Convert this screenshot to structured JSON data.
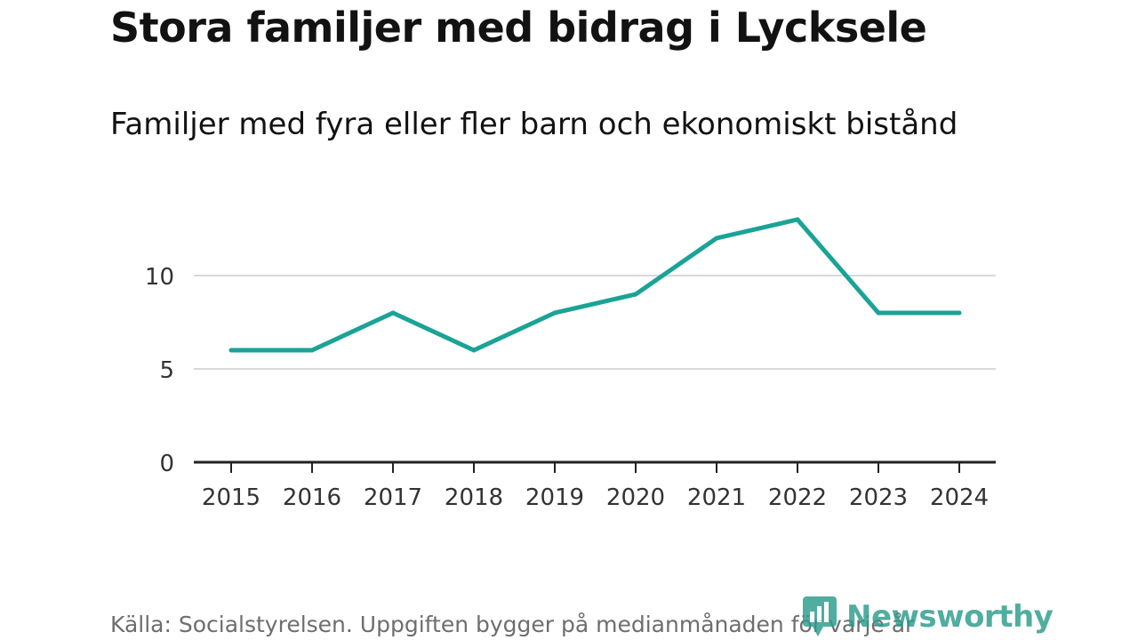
{
  "header": {
    "title": "Stora familjer med bidrag i Lycksele",
    "subtitle": "Familjer med fyra eller fler barn och ekonomiskt bistånd"
  },
  "footer": {
    "source": "Källa: Socialstyrelsen. Uppgiften bygger på medianmånaden för varje år",
    "brand": "Newsworthy"
  },
  "colors": {
    "line": "#1aa396",
    "grid": "#d9d9d9",
    "axis": "#222222",
    "brand": "#2a9c8c"
  },
  "chart_data": {
    "type": "line",
    "title": "Familjer med fyra eller fler barn och ekonomiskt bistånd",
    "xlabel": "",
    "ylabel": "",
    "categories": [
      "2015",
      "2016",
      "2017",
      "2018",
      "2019",
      "2020",
      "2021",
      "2022",
      "2023",
      "2024"
    ],
    "series": [
      {
        "name": "Familjer med fyra eller fler barn",
        "values": [
          6,
          6,
          8,
          6,
          8,
          9,
          12,
          13,
          8,
          8
        ]
      }
    ],
    "yticks": [
      0,
      5,
      10
    ],
    "ylim": [
      0,
      15
    ],
    "grid": true,
    "legend": "none"
  }
}
